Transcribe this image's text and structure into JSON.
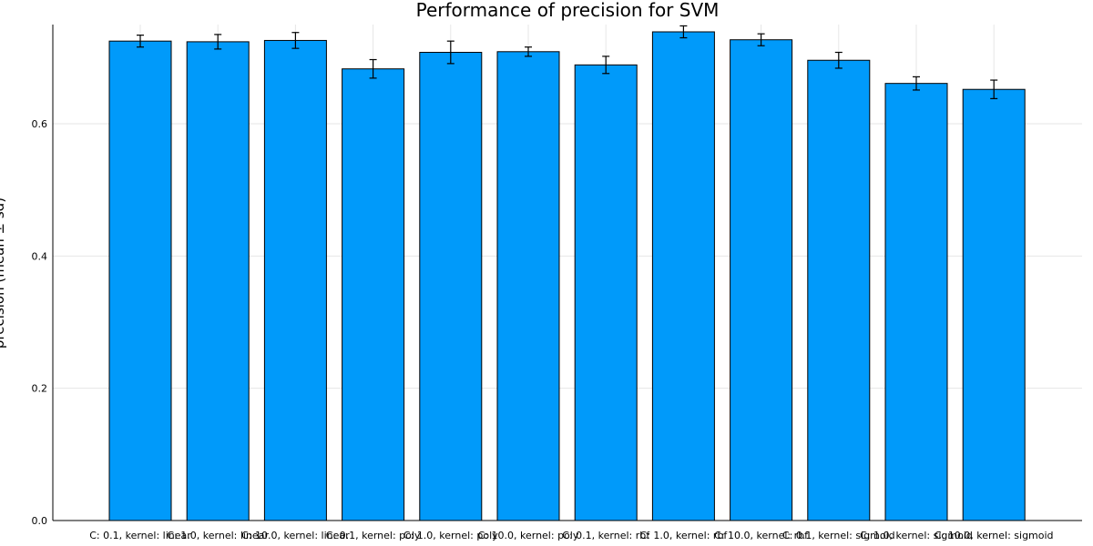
{
  "chart_data": {
    "type": "bar",
    "title": "Performance of precision for SVM",
    "ylabel": "precision (mean ± sd)",
    "xlabel": "",
    "categories": [
      "C: 0.1, kernel: linear",
      "C: 1.0, kernel: linear",
      "C: 10.0, kernel: linear",
      "C: 0.1, kernel: poly",
      "C: 1.0, kernel: poly",
      "C: 10.0, kernel: poly",
      "C: 0.1, kernel: rbf",
      "C: 1.0, kernel: rbf",
      "C: 10.0, kernel: rbf",
      "C: 0.1, kernel: sigmoid",
      "C: 1.0, kernel: sigmoid",
      "C: 10.0, kernel: sigmoid"
    ],
    "values": [
      0.725,
      0.724,
      0.726,
      0.683,
      0.708,
      0.709,
      0.689,
      0.739,
      0.727,
      0.696,
      0.661,
      0.652
    ],
    "errors": [
      0.009,
      0.011,
      0.012,
      0.014,
      0.017,
      0.007,
      0.013,
      0.009,
      0.009,
      0.012,
      0.01,
      0.014
    ],
    "ylim": [
      0,
      0.75
    ],
    "yticks": [
      0.0,
      0.2,
      0.4,
      0.6
    ],
    "ytick_labels": [
      "0.0",
      "0.2",
      "0.4",
      "0.6"
    ],
    "grid": true,
    "legend": "none",
    "bar_color": "#009AFA",
    "edge_color": "#000000"
  }
}
